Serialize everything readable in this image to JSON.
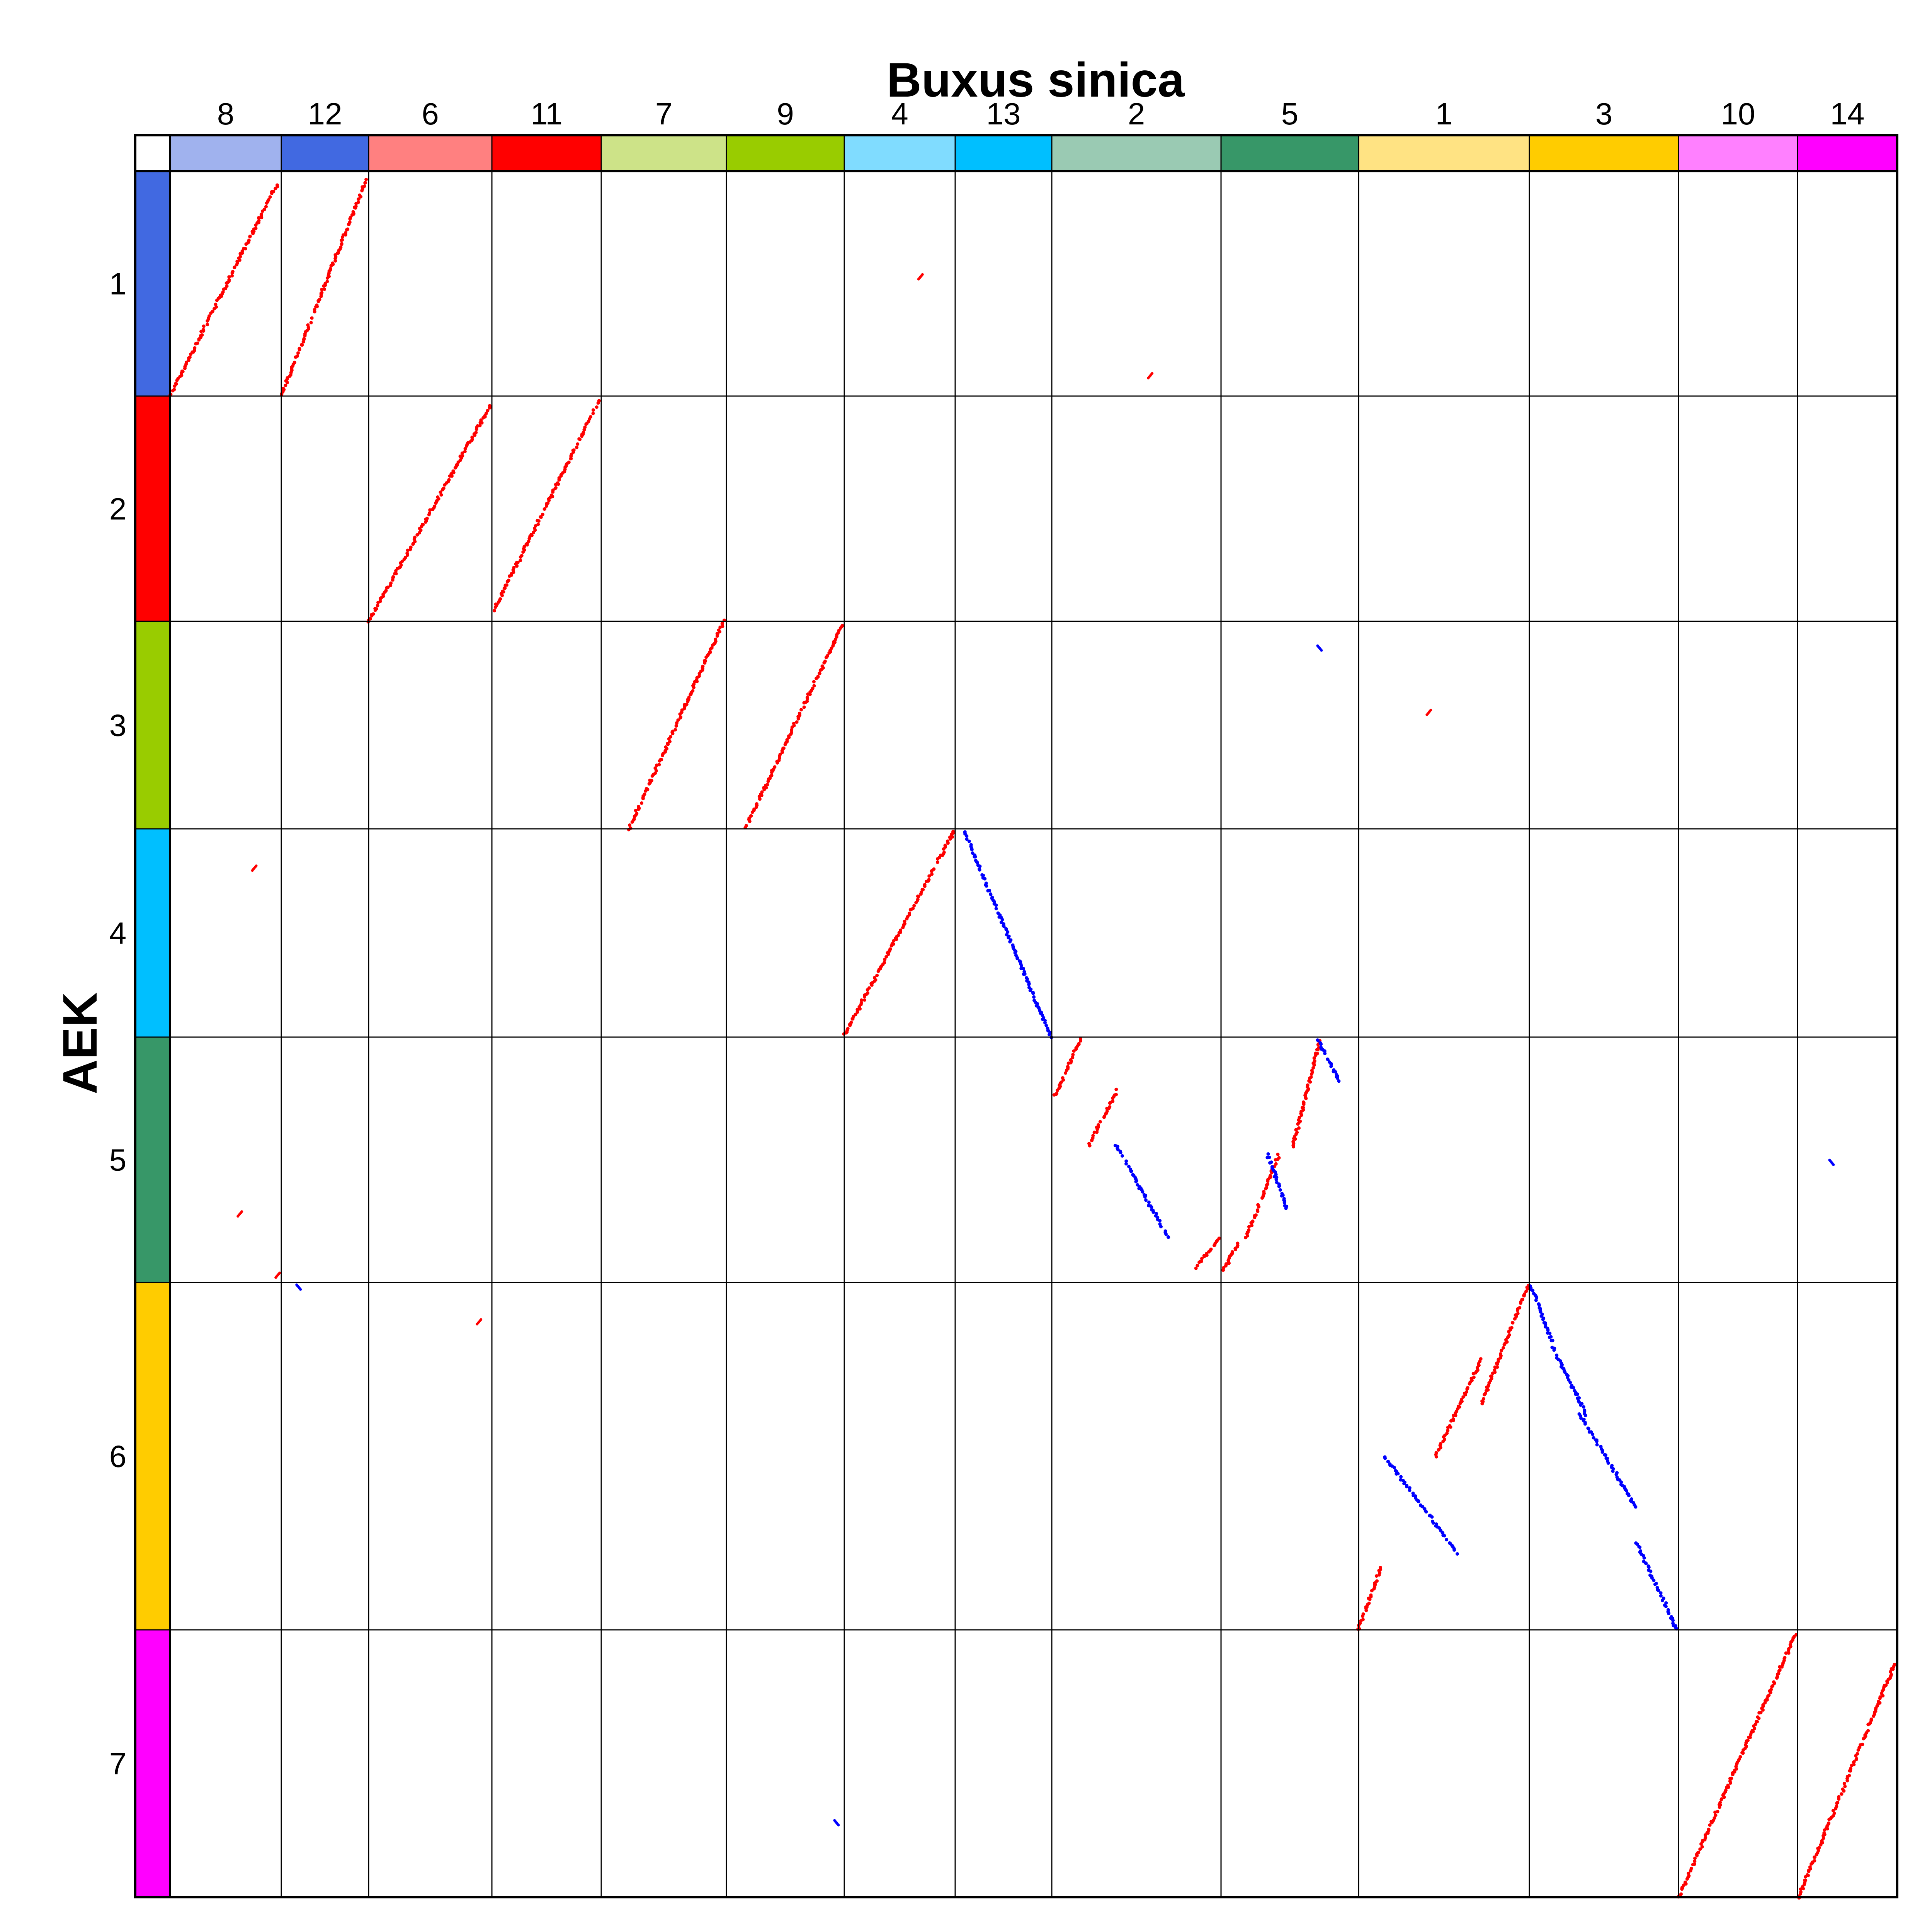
{
  "chart_data": {
    "type": "dotplot",
    "x_title": "Buxus sinica",
    "y_title": "AEK",
    "x_chromosomes": [
      {
        "label": "8",
        "color": "#a0b2ee"
      },
      {
        "label": "12",
        "color": "#4169e1"
      },
      {
        "label": "6",
        "color": "#ff8080"
      },
      {
        "label": "11",
        "color": "#ff0000"
      },
      {
        "label": "7",
        "color": "#cde388"
      },
      {
        "label": "9",
        "color": "#99cc00"
      },
      {
        "label": "4",
        "color": "#80dcff"
      },
      {
        "label": "13",
        "color": "#00bfff"
      },
      {
        "label": "2",
        "color": "#9acab3"
      },
      {
        "label": "5",
        "color": "#379768"
      },
      {
        "label": "1",
        "color": "#ffe383"
      },
      {
        "label": "3",
        "color": "#ffcc00"
      },
      {
        "label": "10",
        "color": "#ff80ff"
      },
      {
        "label": "14",
        "color": "#ff00ff"
      }
    ],
    "y_chromosomes": [
      {
        "label": "1",
        "color": "#4169e1"
      },
      {
        "label": "2",
        "color": "#ff0000"
      },
      {
        "label": "3",
        "color": "#99cc00"
      },
      {
        "label": "4",
        "color": "#00bfff"
      },
      {
        "label": "5",
        "color": "#379768"
      },
      {
        "label": "6",
        "color": "#ffcc00"
      },
      {
        "label": "7",
        "color": "#ff00ff"
      }
    ],
    "forward_color": "#ff0000",
    "reverse_color": "#0000ff",
    "grid": true,
    "synteny_blocks": [
      {
        "x_chr": "8",
        "y_chr": "1",
        "orientation": "forward",
        "x_start": 0.0,
        "x_end": 0.97,
        "y_start": 0.0,
        "y_end": 0.95
      },
      {
        "x_chr": "12",
        "y_chr": "1",
        "orientation": "forward",
        "x_start": 0.0,
        "x_end": 0.97,
        "y_start": 0.0,
        "y_end": 0.96
      },
      {
        "x_chr": "6",
        "y_chr": "2",
        "orientation": "forward",
        "x_start": 0.0,
        "x_end": 0.99,
        "y_start": 0.0,
        "y_end": 0.96
      },
      {
        "x_chr": "11",
        "y_chr": "2",
        "orientation": "forward",
        "x_start": 0.02,
        "x_end": 0.98,
        "y_start": 0.05,
        "y_end": 0.98
      },
      {
        "x_chr": "7",
        "y_chr": "3",
        "orientation": "forward",
        "x_start": 0.22,
        "x_end": 0.98,
        "y_start": 0.0,
        "y_end": 1.0
      },
      {
        "x_chr": "9",
        "y_chr": "3",
        "orientation": "forward",
        "x_start": 0.16,
        "x_end": 0.98,
        "y_start": 0.0,
        "y_end": 0.98
      },
      {
        "x_chr": "4",
        "y_chr": "4",
        "orientation": "forward",
        "x_start": 0.0,
        "x_end": 0.99,
        "y_start": 0.01,
        "y_end": 0.99
      },
      {
        "x_chr": "13",
        "y_chr": "4",
        "orientation": "reverse",
        "x_start": 0.1,
        "x_end": 0.99,
        "y_start": 0.98,
        "y_end": 0.0
      },
      {
        "x_chr": "2",
        "y_chr": "5",
        "orientation": "forward",
        "x_start": 0.02,
        "x_end": 0.17,
        "y_start": 0.76,
        "y_end": 0.99
      },
      {
        "x_chr": "2",
        "y_chr": "5",
        "orientation": "forward",
        "x_start": 0.22,
        "x_end": 0.39,
        "y_start": 0.56,
        "y_end": 0.79
      },
      {
        "x_chr": "2",
        "y_chr": "5",
        "orientation": "reverse",
        "x_start": 0.38,
        "x_end": 0.69,
        "y_start": 0.56,
        "y_end": 0.18
      },
      {
        "x_chr": "2",
        "y_chr": "5",
        "orientation": "forward",
        "x_start": 0.85,
        "x_end": 0.99,
        "y_start": 0.06,
        "y_end": 0.18
      },
      {
        "x_chr": "5",
        "y_chr": "5",
        "orientation": "forward",
        "x_start": 0.02,
        "x_end": 0.12,
        "y_start": 0.05,
        "y_end": 0.16
      },
      {
        "x_chr": "5",
        "y_chr": "5",
        "orientation": "forward",
        "x_start": 0.18,
        "x_end": 0.42,
        "y_start": 0.18,
        "y_end": 0.52
      },
      {
        "x_chr": "5",
        "y_chr": "5",
        "orientation": "reverse",
        "x_start": 0.34,
        "x_end": 0.48,
        "y_start": 0.52,
        "y_end": 0.3
      },
      {
        "x_chr": "5",
        "y_chr": "5",
        "orientation": "forward",
        "x_start": 0.52,
        "x_end": 0.72,
        "y_start": 0.55,
        "y_end": 0.99
      },
      {
        "x_chr": "5",
        "y_chr": "5",
        "orientation": "reverse",
        "x_start": 0.7,
        "x_end": 0.88,
        "y_start": 0.99,
        "y_end": 0.8
      },
      {
        "x_chr": "1",
        "y_chr": "6",
        "orientation": "forward",
        "x_start": 0.0,
        "x_end": 0.13,
        "y_start": 0.0,
        "y_end": 0.18
      },
      {
        "x_chr": "1",
        "y_chr": "6",
        "orientation": "reverse",
        "x_start": 0.15,
        "x_end": 0.58,
        "y_start": 0.5,
        "y_end": 0.22
      },
      {
        "x_chr": "1",
        "y_chr": "6",
        "orientation": "forward",
        "x_start": 0.45,
        "x_end": 0.72,
        "y_start": 0.5,
        "y_end": 0.78
      },
      {
        "x_chr": "1",
        "y_chr": "6",
        "orientation": "forward",
        "x_start": 0.72,
        "x_end": 0.99,
        "y_start": 0.65,
        "y_end": 0.99
      },
      {
        "x_chr": "3",
        "y_chr": "6",
        "orientation": "reverse",
        "x_start": 0.01,
        "x_end": 0.15,
        "y_start": 0.99,
        "y_end": 0.83
      },
      {
        "x_chr": "3",
        "y_chr": "6",
        "orientation": "reverse",
        "x_start": 0.15,
        "x_end": 0.38,
        "y_start": 0.82,
        "y_end": 0.62
      },
      {
        "x_chr": "3",
        "y_chr": "6",
        "orientation": "reverse",
        "x_start": 0.34,
        "x_end": 0.72,
        "y_start": 0.62,
        "y_end": 0.35
      },
      {
        "x_chr": "3",
        "y_chr": "6",
        "orientation": "reverse",
        "x_start": 0.72,
        "x_end": 0.99,
        "y_start": 0.25,
        "y_end": 0.0
      },
      {
        "x_chr": "10",
        "y_chr": "7",
        "orientation": "forward",
        "x_start": 0.0,
        "x_end": 0.99,
        "y_start": 0.0,
        "y_end": 0.99
      },
      {
        "x_chr": "14",
        "y_chr": "7",
        "orientation": "forward",
        "x_start": 0.01,
        "x_end": 0.97,
        "y_start": 0.0,
        "y_end": 0.87
      }
    ],
    "scattered_hits": [
      {
        "x_chr": "4",
        "y_chr": "1",
        "orientation": "forward",
        "x": 0.67,
        "y": 0.52
      },
      {
        "x_chr": "2",
        "y_chr": "1",
        "orientation": "forward",
        "x": 0.57,
        "y": 0.08
      },
      {
        "x_chr": "5",
        "y_chr": "3",
        "orientation": "reverse",
        "x": 0.73,
        "y": 0.86
      },
      {
        "x_chr": "1",
        "y_chr": "3",
        "orientation": "forward",
        "x": 0.4,
        "y": 0.55
      },
      {
        "x_chr": "8",
        "y_chr": "4",
        "orientation": "forward",
        "x": 0.74,
        "y": 0.8
      },
      {
        "x_chr": "8",
        "y_chr": "5",
        "orientation": "forward",
        "x": 0.61,
        "y": 0.27
      },
      {
        "x_chr": "8",
        "y_chr": "5",
        "orientation": "forward",
        "x": 0.95,
        "y": 0.02
      },
      {
        "x_chr": "12",
        "y_chr": "6",
        "orientation": "reverse",
        "x": 0.22,
        "y": 0.98
      },
      {
        "x_chr": "6",
        "y_chr": "6",
        "orientation": "forward",
        "x": 0.88,
        "y": 0.88
      },
      {
        "x_chr": "14",
        "y_chr": "5",
        "orientation": "reverse",
        "x": 0.36,
        "y": 0.48
      },
      {
        "x_chr": "9",
        "y_chr": "7",
        "orientation": "reverse",
        "x": 0.95,
        "y": 0.27
      }
    ]
  }
}
